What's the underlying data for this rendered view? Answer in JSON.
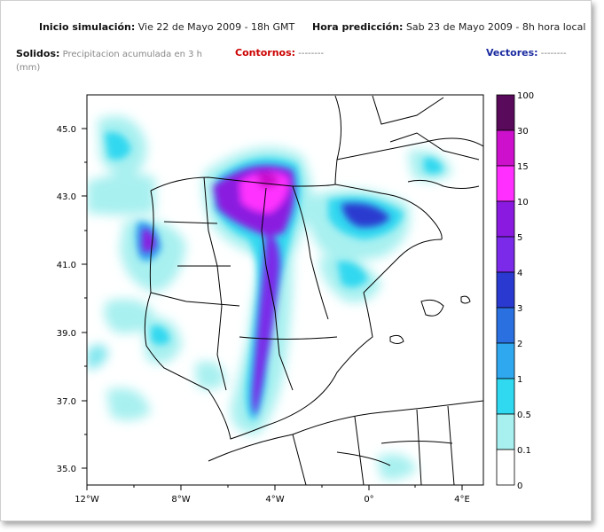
{
  "header": {
    "sim_label": "Inicio simulación:",
    "sim_value": "Vie 22 de Mayo 2009 - 18h GMT",
    "pred_label": "Hora predicción:",
    "pred_value": "Sab 23 de Mayo 2009 - 8h hora local"
  },
  "legend_row": {
    "solidos_label": "Solidos:",
    "solidos_value": "Precipitacion acumulada en 3 h",
    "solidos_unit": "(mm)",
    "contornos_label": "Contornos:",
    "contornos_value": "--------",
    "vectores_label": "Vectores:",
    "vectores_value": "--------"
  },
  "map": {
    "lat_ticks": [
      "45.0",
      "43.0",
      "41.0",
      "39.0",
      "37.0",
      "35.0"
    ],
    "lon_ticks": [
      "12°W",
      "8°W",
      "4°W",
      "0°",
      "4°E"
    ],
    "ocean_color": "#ffffff",
    "boundary_color": "#000000"
  },
  "colorbar": {
    "labels": [
      "100",
      "30",
      "15",
      "10",
      "5",
      "4",
      "3",
      "2",
      "1",
      "0.5",
      "0.1",
      "0"
    ],
    "colors": [
      "#5a0a5a",
      "#cc10cc",
      "#ff30ff",
      "#8a1ae0",
      "#7a2ae8",
      "#2a3ad0",
      "#2a70e0",
      "#30a8f0",
      "#30d8f0",
      "#a8f0f0",
      "#ffffff"
    ]
  }
}
